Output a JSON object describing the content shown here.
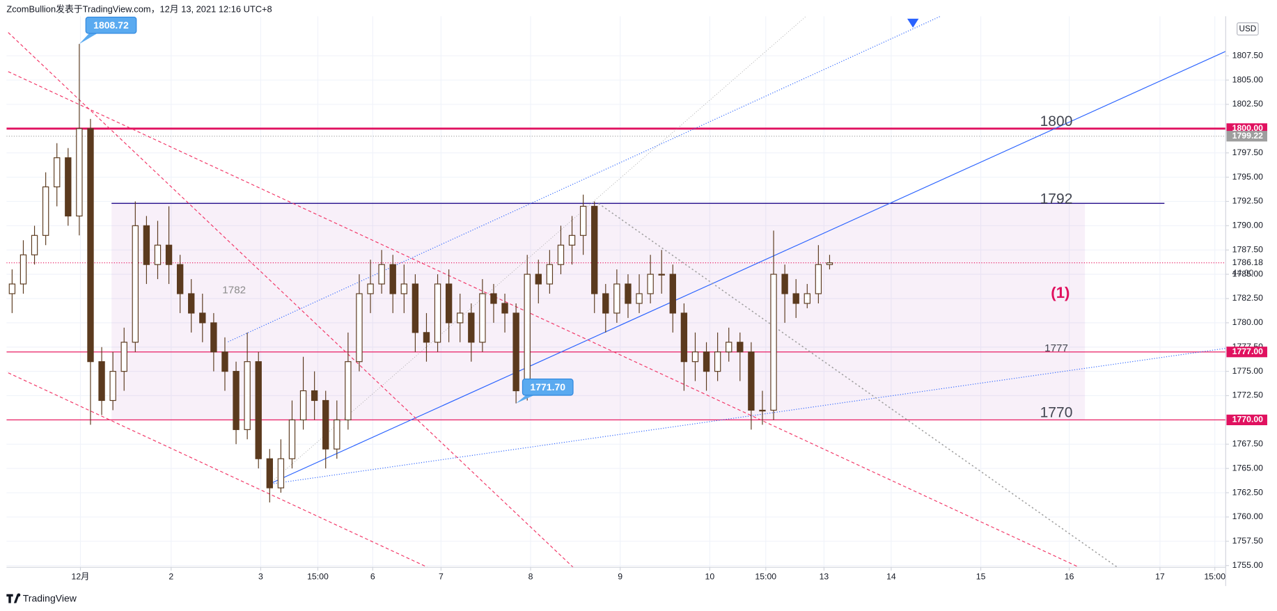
{
  "chart_data": {
    "type": "candlestick",
    "header": "ZcomBullion发表于TradingView.com，12月 13, 2021 12:16 UTC+8",
    "footer": "TradingView",
    "currency": "USD",
    "countdown": "44:00",
    "xlim": [
      -0.5,
      108.37
    ],
    "ylim": [
      1754.82,
      1811.57
    ],
    "xticks": [
      {
        "value": 6.1,
        "label": "12月"
      },
      {
        "value": 14.2,
        "label": "2"
      },
      {
        "value": 22.2,
        "label": "3"
      },
      {
        "value": 27.3,
        "label": "15:00"
      },
      {
        "value": 32.2,
        "label": "6"
      },
      {
        "value": 38.3,
        "label": "7"
      },
      {
        "value": 46.3,
        "label": "8"
      },
      {
        "value": 54.3,
        "label": "9"
      },
      {
        "value": 62.3,
        "label": "10"
      },
      {
        "value": 67.3,
        "label": "15:00"
      },
      {
        "value": 72.5,
        "label": "13"
      },
      {
        "value": 78.5,
        "label": "14"
      },
      {
        "value": 86.5,
        "label": "15"
      },
      {
        "value": 94.4,
        "label": "16"
      },
      {
        "value": 102.5,
        "label": "17"
      },
      {
        "value": 107.4,
        "label": "15:00"
      }
    ],
    "yticks": [
      {
        "value": 1755,
        "label": "1755.00"
      },
      {
        "value": 1757.5,
        "label": "1757.50"
      },
      {
        "value": 1760,
        "label": "1760.00"
      },
      {
        "value": 1762.5,
        "label": "1762.50"
      },
      {
        "value": 1765,
        "label": "1765.00"
      },
      {
        "value": 1767.5,
        "label": "1767.50"
      },
      {
        "value": 1770,
        "label": "1770.00"
      },
      {
        "value": 1772.5,
        "label": "1772.50"
      },
      {
        "value": 1775,
        "label": "1775.00"
      },
      {
        "value": 1777.5,
        "label": "1777.50"
      },
      {
        "value": 1780,
        "label": "1780.00"
      },
      {
        "value": 1782.5,
        "label": "1782.50"
      },
      {
        "value": 1785,
        "label": "1785.00"
      },
      {
        "value": 1787.5,
        "label": "1787.50"
      },
      {
        "value": 1790,
        "label": "1790.00"
      },
      {
        "value": 1792.5,
        "label": "1792.50"
      },
      {
        "value": 1795,
        "label": "1795.00"
      },
      {
        "value": 1797.5,
        "label": "1797.50"
      },
      {
        "value": 1802.5,
        "label": "1802.50"
      },
      {
        "value": 1805,
        "label": "1805.00"
      },
      {
        "value": 1807.5,
        "label": "1807.50"
      }
    ],
    "grid": true,
    "up_color": "#ffffff",
    "down_color": "#5b3a1e",
    "border_color": "#5b3a1e",
    "x": [
      0,
      1,
      2,
      3,
      4,
      5,
      6,
      7,
      8,
      9,
      10,
      11,
      12,
      13,
      14,
      15,
      16,
      17,
      18,
      19,
      20,
      21,
      22,
      23,
      24,
      25,
      26,
      27,
      28,
      29,
      30,
      31,
      32,
      33,
      34,
      35,
      36,
      37,
      38,
      39,
      40,
      41,
      42,
      43,
      44,
      45,
      46,
      47,
      48,
      49,
      50,
      51,
      52,
      53,
      54,
      55,
      56,
      57,
      58,
      59,
      60,
      61,
      62,
      63,
      64,
      65,
      66,
      67,
      68,
      69,
      70,
      71,
      72,
      73
    ],
    "opens": [
      1783,
      1784,
      1787,
      1789,
      1794,
      1797,
      1791,
      1800,
      1776,
      1772,
      1775,
      1778,
      1790,
      1786,
      1788,
      1786,
      1783,
      1781,
      1780,
      1777,
      1775,
      1769,
      1776,
      1766,
      1763,
      1766,
      1770,
      1773,
      1772,
      1767,
      1770,
      1776,
      1783,
      1784,
      1786,
      1783,
      1784,
      1779,
      1778,
      1784,
      1780,
      1781,
      1778,
      1783,
      1782,
      1781,
      1773,
      1785,
      1784,
      1786,
      1788,
      1789,
      1792,
      1783,
      1781,
      1784,
      1782,
      1783,
      1785,
      1785,
      1781,
      1776,
      1777,
      1775,
      1777,
      1778,
      1777,
      1771,
      1771,
      1785,
      1783,
      1782,
      1783,
      1786
    ],
    "highs": [
      1785.5,
      1788.5,
      1790,
      1795.5,
      1798.5,
      1798,
      1808.72,
      1801,
      1777.5,
      1777,
      1779.5,
      1792.5,
      1791,
      1790.5,
      1792,
      1787,
      1784.5,
      1783,
      1781,
      1778.5,
      1776,
      1779,
      1777,
      1767,
      1768,
      1772,
      1776.5,
      1775,
      1773,
      1772,
      1779,
      1785,
      1786.5,
      1787.5,
      1787,
      1786,
      1785,
      1781,
      1785,
      1785.5,
      1783,
      1782,
      1784.5,
      1784,
      1783,
      1782,
      1787,
      1786.5,
      1787.5,
      1790,
      1791,
      1793.2,
      1792.5,
      1784,
      1785.5,
      1785,
      1785,
      1787,
      1787.5,
      1786,
      1782,
      1779,
      1778,
      1779,
      1779.5,
      1779,
      1778,
      1773,
      1789.5,
      1786,
      1784.5,
      1784,
      1788,
      1787
    ],
    "lows": [
      1781,
      1783,
      1786,
      1788,
      1792,
      1790,
      1789,
      1769.5,
      1770.5,
      1771,
      1773,
      1777,
      1784,
      1784.5,
      1784,
      1781,
      1779,
      1778,
      1775,
      1773,
      1767.5,
      1768,
      1765,
      1761.5,
      1762.5,
      1765,
      1769,
      1770,
      1765,
      1766,
      1769,
      1775,
      1781,
      1783,
      1781,
      1781,
      1777,
      1776,
      1777,
      1778,
      1778,
      1776,
      1777,
      1780,
      1779,
      1771.7,
      1772,
      1782,
      1783,
      1785,
      1786,
      1787,
      1781,
      1779,
      1780,
      1780.5,
      1781,
      1782,
      1783,
      1779,
      1773,
      1774,
      1773,
      1774,
      1776,
      1774,
      1769,
      1769.5,
      1770,
      1780,
      1780.5,
      1781.5,
      1782,
      1785.5
    ],
    "closes": [
      1784,
      1787,
      1789,
      1794,
      1797,
      1791,
      1800,
      1776,
      1772,
      1775,
      1778,
      1790,
      1786,
      1788,
      1786,
      1783,
      1781,
      1780,
      1777,
      1775,
      1769,
      1776,
      1766,
      1763,
      1766,
      1770,
      1773,
      1772,
      1767,
      1770,
      1776,
      1783,
      1784,
      1786,
      1783,
      1784,
      1779,
      1778,
      1784,
      1780,
      1781,
      1778,
      1783,
      1782,
      1781,
      1773,
      1785,
      1784,
      1786,
      1788,
      1789,
      1792,
      1783,
      1781,
      1784,
      1782,
      1783,
      1785,
      1785,
      1781,
      1776,
      1777,
      1775,
      1777,
      1778,
      1777,
      1771,
      1771,
      1785,
      1783,
      1782,
      1783,
      1786,
      1786.18
    ],
    "zone": {
      "x": [
        8.88,
        95.8
      ],
      "y": [
        1770,
        1792.3
      ],
      "color": "#9c27b0"
    },
    "hlines": [
      {
        "value": 1800,
        "color": "#e0115f",
        "width": 2.5
      },
      {
        "value": 1799.22,
        "color": "#9e9e9e",
        "width": 1,
        "dash": "1,2"
      },
      {
        "value": 1786.18,
        "color": "#e91e63",
        "width": 1,
        "dash": "1,2"
      },
      {
        "value": 1792.3,
        "color": "#311b92",
        "width": 1.3,
        "x": [
          8.88,
          102.9
        ]
      },
      {
        "value": 1777,
        "color": "#e91e63",
        "width": 1
      },
      {
        "value": 1770,
        "color": "#e91e63",
        "width": 1
      }
    ],
    "trendlines": [
      {
        "x": [
          22.92,
          108.37
        ],
        "y": [
          1763.37,
          1807.96
        ],
        "color": "#2962ff",
        "width": 1
      },
      {
        "x": [
          19.28,
          82.9
        ],
        "y": [
          1778.04,
          1811.57
        ],
        "color": "#2962ff",
        "width": 1,
        "dash": "1,2"
      },
      {
        "x": [
          22.92,
          108.37
        ],
        "y": [
          1763.37,
          1777.37
        ],
        "color": "#2962ff",
        "width": 1,
        "dash": "1,2"
      },
      {
        "x": [
          22.92,
          70.9
        ],
        "y": [
          1763.37,
          1811.57
        ],
        "color": "#9e9e9e",
        "width": 0.6,
        "dash": "1,2"
      },
      {
        "x": [
          52.37,
          98.7
        ],
        "y": [
          1792.29,
          1754.82
        ],
        "color": "#9e9e9e",
        "width": 1.3,
        "dash": "2,3"
      },
      {
        "x": [
          -0.35,
          50.1
        ],
        "y": [
          1809.9,
          1754.82
        ],
        "color": "#f23667",
        "width": 1,
        "dash": "4,3"
      },
      {
        "x": [
          -0.35,
          95.28
        ],
        "y": [
          1805.87,
          1754.82
        ],
        "color": "#f23667",
        "width": 1,
        "dash": "4,3"
      },
      {
        "x": [
          -0.35,
          37.1
        ],
        "y": [
          1774.85,
          1754.82
        ],
        "color": "#f23667",
        "width": 1,
        "dash": "4,3"
      }
    ],
    "callouts": [
      {
        "value": 1808.72,
        "x": 6
      },
      {
        "value": 1771.7,
        "label": "1771.70",
        "x": 45
      }
    ],
    "price_labels": [
      {
        "value": 1800,
        "label": "1800.00",
        "color": "#e0115f"
      },
      {
        "value": 1799.22,
        "label": "1799.22",
        "color": "#9e9e9e"
      },
      {
        "value": 1786.18,
        "label": "1786.18",
        "color": "#ffffff"
      },
      {
        "value": 1777,
        "label": "1777.00",
        "color": "#e0115f"
      },
      {
        "value": 1770,
        "label": "1770.00",
        "color": "#e0115f"
      }
    ],
    "level_labels": [
      1800,
      1792,
      1777,
      1770
    ],
    "zone_label": 1782,
    "wave_label": "(1)"
  }
}
